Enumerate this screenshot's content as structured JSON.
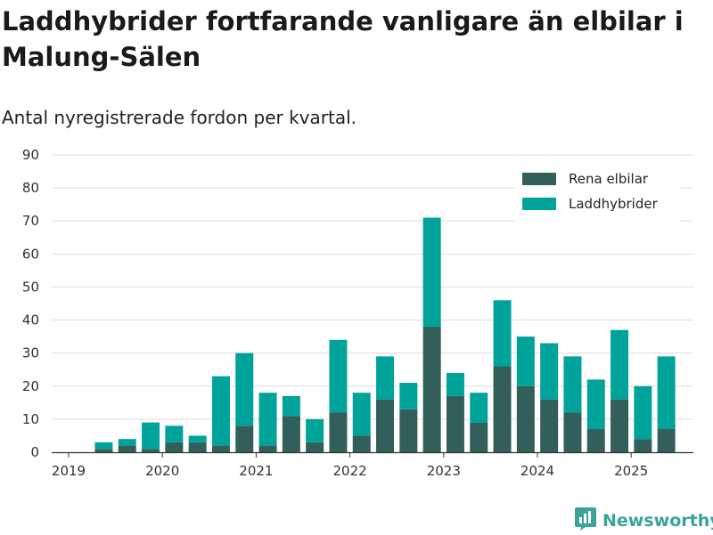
{
  "title": "Laddhybrider fortfarande vanligare än elbilar i Malung-Sälen",
  "subtitle": "Antal nyregistrerade fordon per kvartal.",
  "brand": {
    "name": "Newsworthy"
  },
  "colors": {
    "elbil": "#335f5b",
    "hybrid": "#00a39a",
    "grid": "#dddddd",
    "axis": "#333333",
    "brand": "#3aa39a"
  },
  "chart_data": {
    "type": "bar",
    "stacked": true,
    "x_tick_labels": [
      "2019",
      "2020",
      "2021",
      "2022",
      "2023",
      "2024",
      "2025"
    ],
    "categories": [
      "2019-Q2",
      "2019-Q3",
      "2019-Q4",
      "2020-Q1",
      "2020-Q2",
      "2020-Q3",
      "2020-Q4",
      "2021-Q1",
      "2021-Q2",
      "2021-Q3",
      "2021-Q4",
      "2022-Q1",
      "2022-Q2",
      "2022-Q3",
      "2022-Q4",
      "2023-Q1",
      "2023-Q2",
      "2023-Q3",
      "2023-Q4",
      "2024-Q1",
      "2024-Q2",
      "2024-Q3",
      "2024-Q4",
      "2025-Q1",
      "2025-Q2"
    ],
    "series": [
      {
        "name": "Rena elbilar",
        "values": [
          1,
          2,
          1,
          3,
          3,
          2,
          8,
          2,
          11,
          3,
          12,
          5,
          16,
          13,
          38,
          17,
          9,
          26,
          20,
          16,
          12,
          7,
          16,
          4,
          7
        ]
      },
      {
        "name": "Laddhybrider",
        "values": [
          2,
          2,
          8,
          5,
          2,
          21,
          22,
          16,
          6,
          7,
          22,
          13,
          13,
          8,
          33,
          7,
          9,
          20,
          15,
          17,
          17,
          15,
          21,
          16,
          22
        ]
      }
    ],
    "y_ticks": [
      0,
      10,
      20,
      30,
      40,
      50,
      60,
      70,
      80,
      90
    ],
    "ylim": [
      0,
      90
    ],
    "grid": true,
    "legend": "top-right",
    "xlabel": "",
    "ylabel": ""
  }
}
